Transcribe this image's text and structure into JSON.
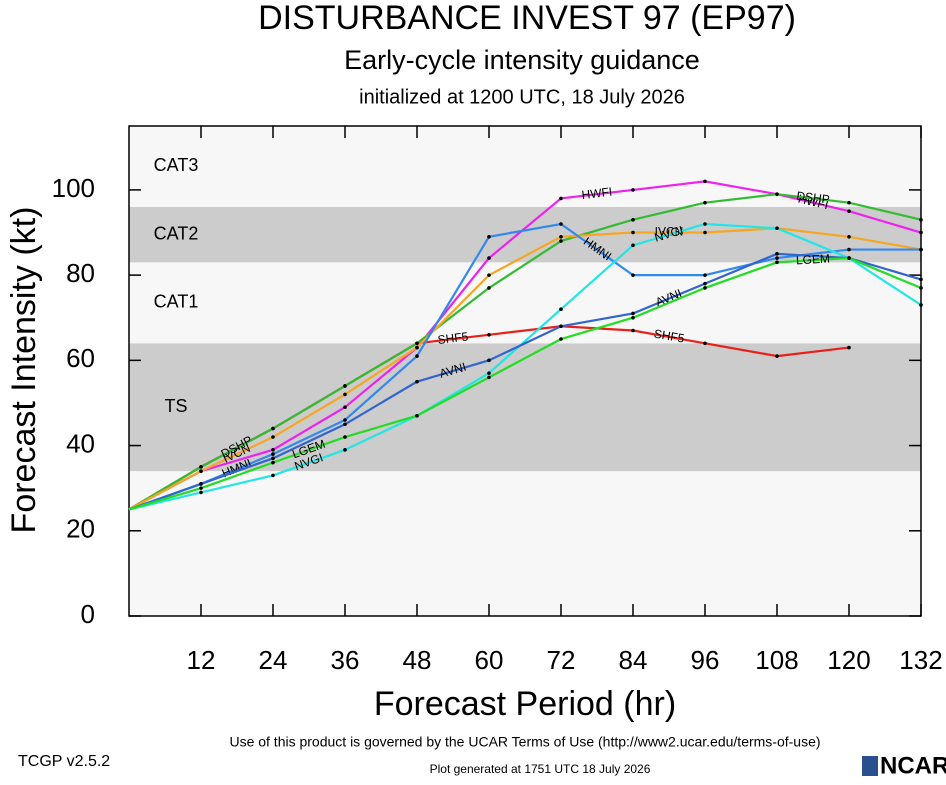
{
  "chart_data": {
    "type": "line",
    "title": "DISTURBANCE INVEST 97 (EP97)",
    "subtitle": "Early-cycle intensity guidance",
    "initialized": "initialized at 1200 UTC, 18 July 2026",
    "x_label": "Forecast Period (hr)",
    "y_label": "Forecast Intensity (kt)",
    "x": [
      0,
      12,
      24,
      36,
      48,
      60,
      72,
      84,
      96,
      108,
      120,
      132
    ],
    "xlim": [
      0,
      132
    ],
    "xticks": [
      12,
      24,
      36,
      48,
      60,
      72,
      84,
      96,
      108,
      120,
      132
    ],
    "ylim": [
      0,
      115
    ],
    "yticks": [
      0,
      20,
      40,
      60,
      80,
      100
    ],
    "bands": [
      {
        "label": "TS",
        "from": 34,
        "to": 64,
        "color": "#cccccc"
      },
      {
        "label": "CAT1",
        "from": 64,
        "to": 83,
        "color": "#f7f7f7"
      },
      {
        "label": "CAT2",
        "from": 83,
        "to": 96,
        "color": "#cccccc"
      },
      {
        "label": "CAT3",
        "from": 96,
        "to": 115,
        "color": "#f7f7f7"
      }
    ],
    "series": [
      {
        "name": "SHF5",
        "color": "#e8201a",
        "values": [
          25,
          35,
          44,
          54,
          64,
          66,
          68,
          67,
          64,
          61,
          63,
          null
        ]
      },
      {
        "name": "HWFI",
        "color": "#ee22ee",
        "values": [
          25,
          34,
          39,
          49,
          63,
          84,
          98,
          100,
          102,
          99,
          95,
          90
        ]
      },
      {
        "name": "DSHP",
        "color": "#33bb33",
        "values": [
          25,
          35,
          44,
          54,
          64,
          77,
          88,
          93,
          97,
          99,
          97,
          93
        ]
      },
      {
        "name": "IVCN",
        "color": "#f5a623",
        "values": [
          25,
          34,
          42,
          52,
          63,
          80,
          89,
          90,
          90,
          91,
          89,
          86
        ]
      },
      {
        "name": "HMNI",
        "color": "#3388ee",
        "values": [
          25,
          31,
          38,
          46,
          61,
          89,
          92,
          80,
          80,
          84,
          86,
          86
        ]
      },
      {
        "name": "NVGI",
        "color": "#22e5e5",
        "values": [
          25,
          29,
          33,
          39,
          47,
          57,
          72,
          87,
          92,
          91,
          84,
          73
        ]
      },
      {
        "name": "AVNI",
        "color": "#3366cc",
        "values": [
          25,
          31,
          37,
          45,
          55,
          60,
          68,
          71,
          78,
          85,
          84,
          79
        ]
      },
      {
        "name": "LGEM",
        "color": "#22dd22",
        "values": [
          25,
          30,
          36,
          42,
          47,
          56,
          65,
          70,
          77,
          83,
          84,
          77
        ]
      }
    ],
    "footer_terms": "Use of this product is governed by the UCAR Terms of Use (http://www2.ucar.edu/terms-of-use)",
    "version": "TCGP v2.5.2",
    "generated": "Plot generated at 1751 UTC   18 July 2026",
    "logo": "NCAR"
  }
}
